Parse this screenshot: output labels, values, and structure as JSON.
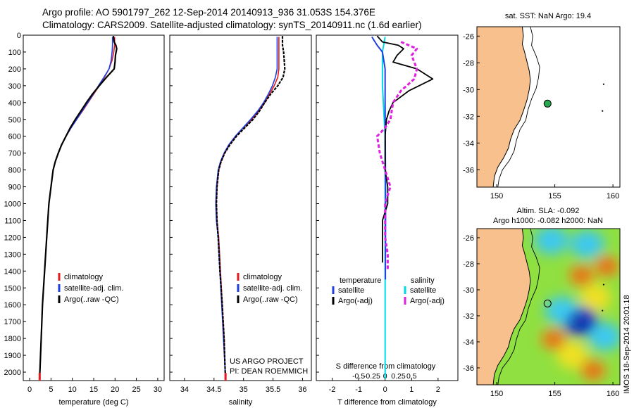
{
  "header": {
    "line1": "Argo profile: AO 5901797_262 12-Sep-2014 20140913_936 31.053S 154.376E",
    "line2": "Climatology: CARS2009. Satellite-adjusted climatology: synTS_20140911.nc (1.6d earlier)"
  },
  "stamp": "IMOS 18-Sep-2014 20:01:18",
  "project": {
    "line1": "US ARGO PROJECT",
    "line2": "PI: DEAN ROEMMICH"
  },
  "colors": {
    "climatology": "#e41a1c",
    "satellite": "#1f3fe0",
    "argo": "#000000",
    "satellite_diff": "#00d8e8",
    "argo_adj": "#e020e0",
    "land": "#f8c08c"
  },
  "chart_data": [
    {
      "type": "line",
      "id": "temperature",
      "xlabel": "temperature (deg C)",
      "xlim": [
        -1.5,
        31.5
      ],
      "ylim": [
        2050,
        0
      ],
      "xticks": [
        "0",
        "5",
        "10",
        "15",
        "20",
        "25",
        "30"
      ],
      "yticks": [
        "0",
        "100",
        "200",
        "300",
        "400",
        "500",
        "600",
        "700",
        "800",
        "900",
        "1000",
        "1100",
        "1200",
        "1300",
        "1400",
        "1500",
        "1600",
        "1700",
        "1800",
        "1900",
        "2000"
      ],
      "legend": [
        "climatology",
        "satellite-adj. clim.",
        "Argo(..raw -QC)"
      ],
      "series": [
        {
          "name": "climatology",
          "points": [
            [
              19.9,
              10
            ],
            [
              19.9,
              60
            ],
            [
              19.7,
              100
            ],
            [
              19.3,
              150
            ],
            [
              18.6,
              200
            ],
            [
              17.5,
              250
            ],
            [
              16.3,
              300
            ],
            [
              15,
              350
            ],
            [
              13.7,
              400
            ],
            [
              12.4,
              450
            ],
            [
              11,
              500
            ],
            [
              9.7,
              550
            ],
            [
              8.5,
              600
            ],
            [
              7.5,
              650
            ],
            [
              6.7,
              700
            ],
            [
              6,
              750
            ],
            [
              5.5,
              800
            ],
            [
              5,
              900
            ],
            [
              4.5,
              1000
            ],
            [
              4,
              1200
            ],
            [
              3.5,
              1400
            ],
            [
              3,
              1600
            ],
            [
              2.7,
              1800
            ],
            [
              2.4,
              2000
            ],
            [
              2.3,
              2050
            ]
          ]
        },
        {
          "name": "satellite-adj. clim.",
          "points": [
            [
              19.4,
              10
            ],
            [
              19.4,
              60
            ],
            [
              19.3,
              100
            ],
            [
              19.1,
              150
            ],
            [
              18.6,
              200
            ],
            [
              17.4,
              250
            ],
            [
              16.1,
              300
            ],
            [
              14.9,
              350
            ],
            [
              13.6,
              400
            ],
            [
              12.3,
              450
            ],
            [
              11,
              500
            ],
            [
              9.7,
              550
            ],
            [
              8.5,
              600
            ],
            [
              7.5,
              650
            ],
            [
              6.7,
              700
            ],
            [
              6,
              750
            ],
            [
              5.5,
              800
            ],
            [
              5,
              900
            ],
            [
              4.5,
              1000
            ],
            [
              4,
              1200
            ],
            [
              3.5,
              1400
            ],
            [
              3,
              1600
            ],
            [
              2.7,
              1800
            ],
            [
              2.4,
              2000
            ],
            [
              2.3,
              2040
            ]
          ]
        },
        {
          "name": "Argo(..raw -QC)",
          "points": [
            [
              19.6,
              5
            ],
            [
              19.8,
              40
            ],
            [
              20.2,
              60
            ],
            [
              20.4,
              80
            ],
            [
              20.1,
              120
            ],
            [
              20,
              160
            ],
            [
              19.8,
              200
            ],
            [
              18,
              250
            ],
            [
              16.3,
              300
            ],
            [
              14.7,
              350
            ],
            [
              13.3,
              400
            ],
            [
              12,
              450
            ],
            [
              10.7,
              500
            ],
            [
              9.5,
              550
            ],
            [
              8.5,
              600
            ],
            [
              7.5,
              650
            ],
            [
              6.7,
              700
            ],
            [
              6,
              750
            ],
            [
              5.5,
              800
            ],
            [
              5,
              900
            ],
            [
              4.5,
              1000
            ],
            [
              4,
              1200
            ],
            [
              3.5,
              1400
            ],
            [
              3,
              1600
            ],
            [
              2.7,
              1800
            ],
            [
              2.4,
              2000
            ],
            [
              2.3,
              2020
            ]
          ]
        }
      ]
    },
    {
      "type": "line",
      "id": "salinity",
      "xlabel": "salinity",
      "xlim": [
        33.75,
        36.15
      ],
      "ylim": [
        2050,
        0
      ],
      "xticks": [
        "34",
        "34.5",
        "35",
        "35.5",
        "36"
      ],
      "legend": [
        "climatology",
        "satellite-adj. clim.",
        "Argo(..raw -QC)"
      ],
      "series": [
        {
          "name": "climatology",
          "points": [
            [
              35.6,
              10
            ],
            [
              35.6,
              200
            ],
            [
              35.58,
              250
            ],
            [
              35.52,
              300
            ],
            [
              35.44,
              350
            ],
            [
              35.36,
              400
            ],
            [
              35.26,
              450
            ],
            [
              35.14,
              500
            ],
            [
              35,
              550
            ],
            [
              34.87,
              600
            ],
            [
              34.76,
              650
            ],
            [
              34.68,
              700
            ],
            [
              34.62,
              750
            ],
            [
              34.58,
              800
            ],
            [
              34.55,
              900
            ],
            [
              34.54,
              1000
            ],
            [
              34.55,
              1100
            ],
            [
              34.58,
              1200
            ],
            [
              34.61,
              1400
            ],
            [
              34.64,
              1600
            ],
            [
              34.67,
              1800
            ],
            [
              34.69,
              2000
            ],
            [
              34.7,
              2050
            ]
          ]
        },
        {
          "name": "satellite-adj. clim.",
          "points": [
            [
              35.57,
              10
            ],
            [
              35.57,
              200
            ],
            [
              35.54,
              250
            ],
            [
              35.49,
              300
            ],
            [
              35.42,
              350
            ],
            [
              35.34,
              400
            ],
            [
              35.24,
              450
            ],
            [
              35.12,
              500
            ],
            [
              34.99,
              550
            ],
            [
              34.86,
              600
            ],
            [
              34.75,
              650
            ],
            [
              34.67,
              700
            ],
            [
              34.61,
              750
            ],
            [
              34.57,
              800
            ],
            [
              34.54,
              900
            ],
            [
              34.53,
              1000
            ],
            [
              34.54,
              1100
            ],
            [
              34.57,
              1200
            ],
            [
              34.6,
              1400
            ],
            [
              34.63,
              1600
            ],
            [
              34.66,
              1800
            ],
            [
              34.69,
              2000
            ],
            [
              34.69,
              2040
            ]
          ]
        },
        {
          "name": "Argo(..raw -QC)",
          "points": [
            [
              35.66,
              5
            ],
            [
              35.66,
              60
            ],
            [
              35.68,
              100
            ],
            [
              35.69,
              150
            ],
            [
              35.7,
              200
            ],
            [
              35.67,
              250
            ],
            [
              35.58,
              300
            ],
            [
              35.46,
              350
            ],
            [
              35.36,
              400
            ],
            [
              35.27,
              450
            ],
            [
              35.16,
              500
            ],
            [
              35.02,
              550
            ],
            [
              34.88,
              600
            ],
            [
              34.77,
              650
            ],
            [
              34.68,
              700
            ],
            [
              34.62,
              750
            ],
            [
              34.58,
              800
            ],
            [
              34.55,
              900
            ],
            [
              34.54,
              1000
            ],
            [
              34.55,
              1100
            ],
            [
              34.57,
              1200
            ],
            [
              34.6,
              1400
            ],
            [
              34.64,
              1600
            ],
            [
              34.67,
              1800
            ],
            [
              34.69,
              2000
            ],
            [
              34.7,
              2020
            ]
          ]
        }
      ]
    },
    {
      "type": "line",
      "id": "difference",
      "xlabel": "T difference from climatology",
      "secondary_xlabel": "S difference from climatology",
      "xlim": [
        -2.6,
        2.75
      ],
      "ylim": [
        2050,
        0
      ],
      "xticks": [
        "-2",
        "-1",
        "0",
        "1",
        "2"
      ],
      "secondary_xticks": [
        "-0.5",
        "-0.25",
        "0",
        "0.25",
        "0.5"
      ],
      "legend_headers": [
        "temperature",
        "salinity"
      ],
      "legend": [
        "satellite",
        "Argo(-adj)",
        "satellite",
        "Argo(-adj)"
      ],
      "series": [
        {
          "name": "T satellite",
          "points": [
            [
              -0.5,
              10
            ],
            [
              -0.3,
              60
            ],
            [
              -0.1,
              100
            ],
            [
              0,
              200
            ],
            [
              0,
              400
            ],
            [
              0.02,
              1000
            ],
            [
              0.01,
              1400
            ],
            [
              0.01,
              1450
            ]
          ]
        },
        {
          "name": "T Argo(-adj)",
          "points": [
            [
              -0.3,
              5
            ],
            [
              -0.1,
              40
            ],
            [
              0.5,
              60
            ],
            [
              0.7,
              80
            ],
            [
              0.45,
              120
            ],
            [
              0.3,
              160
            ],
            [
              1.2,
              200
            ],
            [
              1.8,
              260
            ],
            [
              0.9,
              330
            ],
            [
              0.3,
              400
            ],
            [
              0.15,
              450
            ],
            [
              0.05,
              500
            ],
            [
              0,
              600
            ],
            [
              0,
              800
            ],
            [
              0.1,
              900
            ],
            [
              0.1,
              1000
            ],
            [
              -0.1,
              1100
            ],
            [
              -0.1,
              1300
            ],
            [
              -0.1,
              1350
            ]
          ]
        },
        {
          "name": "S satellite",
          "points": [
            [
              0,
              10
            ],
            [
              -0.05,
              100
            ],
            [
              -0.05,
              300
            ],
            [
              0,
              600
            ],
            [
              0,
              1200
            ],
            [
              0,
              2040
            ]
          ]
        },
        {
          "name": "S Argo(-adj)",
          "points": [
            [
              0.3,
              40
            ],
            [
              0.6,
              80
            ],
            [
              0.5,
              120
            ],
            [
              0.6,
              200
            ],
            [
              0.55,
              260
            ],
            [
              0.3,
              330
            ],
            [
              0.15,
              400
            ],
            [
              0.1,
              500
            ],
            [
              0,
              550
            ],
            [
              -0.15,
              600
            ],
            [
              -0.1,
              700
            ],
            [
              0,
              800
            ],
            [
              0.1,
              900
            ],
            [
              0,
              1000
            ],
            [
              0,
              1100
            ],
            [
              0,
              1200
            ],
            [
              0.05,
              1300
            ],
            [
              0.05,
              1400
            ]
          ]
        }
      ]
    },
    {
      "type": "scatter",
      "id": "sst_map",
      "title": "sat. SST: NaN Argo: 19.4",
      "xlim": [
        148.3,
        160.6
      ],
      "ylim": [
        -37.3,
        -25.3
      ],
      "xticks": [
        "150",
        "155",
        "160"
      ],
      "yticks": [
        "-26",
        "-28",
        "-30",
        "-32",
        "-34",
        "-36"
      ],
      "point": {
        "lon": 154.376,
        "lat": -31.053
      }
    },
    {
      "type": "heatmap",
      "id": "sla_map",
      "title_line1": "Altim. SLA: -0.092",
      "title_line2": "Argo h1000: -0.082 h2000: NaN",
      "xlim": [
        148.3,
        160.6
      ],
      "ylim": [
        -37.3,
        -25.3
      ],
      "xticks": [
        "150",
        "155",
        "160"
      ],
      "yticks": [
        "-26",
        "-28",
        "-30",
        "-32",
        "-34",
        "-36"
      ],
      "point": {
        "lon": 154.376,
        "lat": -31.053
      },
      "features": [
        {
          "lon": 154.7,
          "lat": -26.2,
          "level": "low"
        },
        {
          "lon": 157.8,
          "lat": -26.5,
          "level": "low"
        },
        {
          "lon": 157.3,
          "lat": -28.9,
          "level": "high"
        },
        {
          "lon": 159.5,
          "lat": -28.2,
          "level": "high"
        },
        {
          "lon": 158.5,
          "lat": -30.6,
          "level": "mid-high"
        },
        {
          "lon": 157.1,
          "lat": -32.4,
          "level": "very-low"
        },
        {
          "lon": 155.6,
          "lat": -31.6,
          "level": "low"
        },
        {
          "lon": 154.9,
          "lat": -33.8,
          "level": "high"
        },
        {
          "lon": 156.5,
          "lat": -35.0,
          "level": "mid-high"
        },
        {
          "lon": 158.3,
          "lat": -36.2,
          "level": "high"
        },
        {
          "lon": 159.3,
          "lat": -33.6,
          "level": "low"
        }
      ]
    }
  ]
}
